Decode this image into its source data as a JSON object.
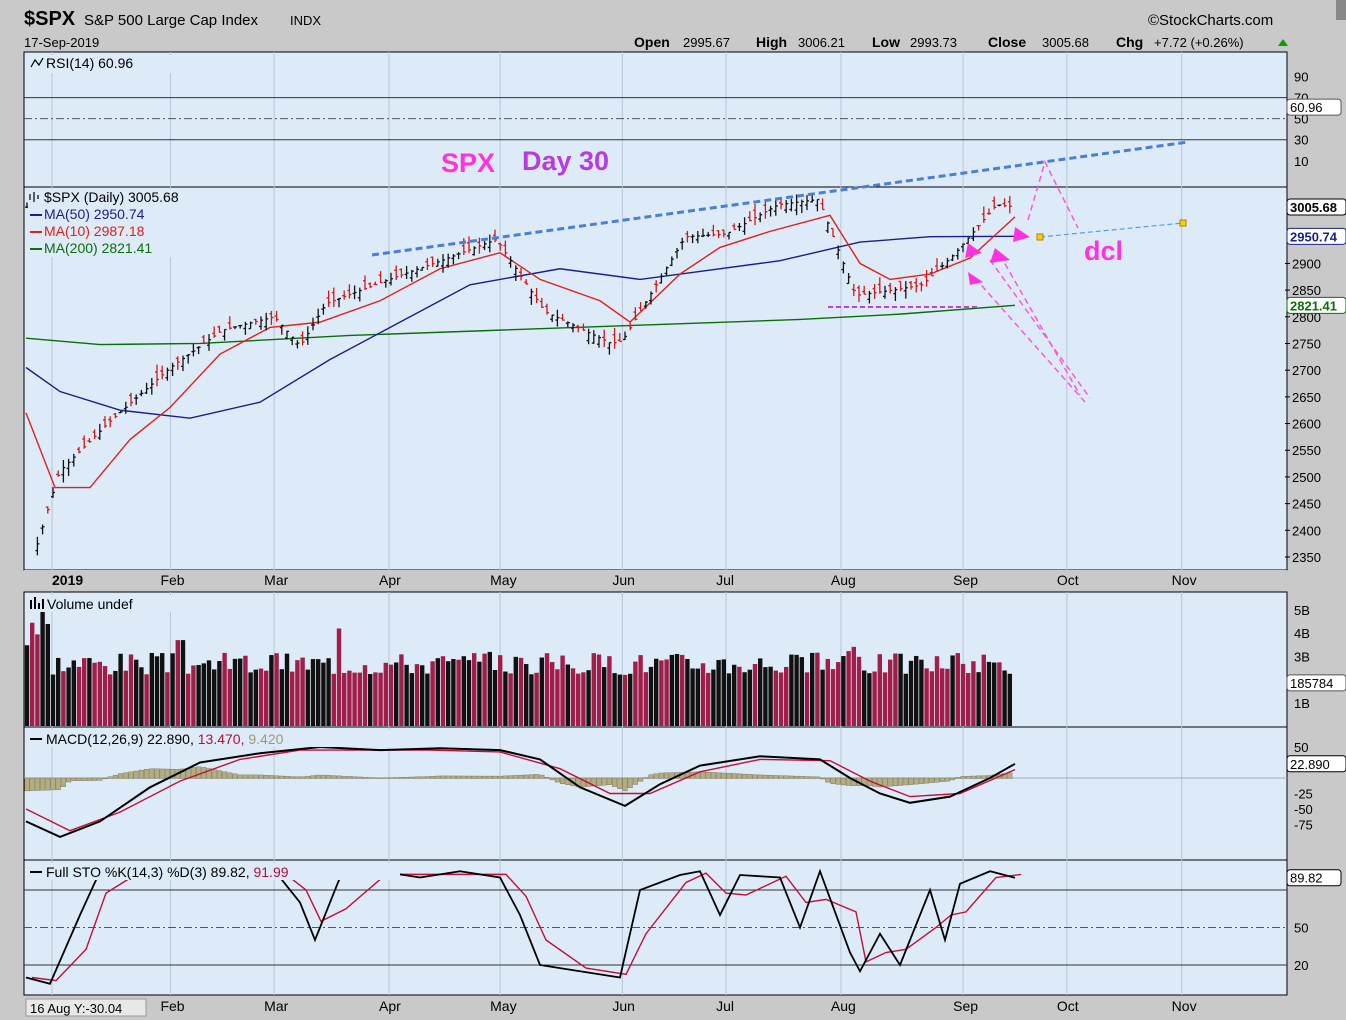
{
  "header": {
    "symbol": "$SPX",
    "name": "S&P 500 Large Cap Index",
    "exchange": "INDX",
    "date": "17-Sep-2019",
    "source": "©StockCharts.com",
    "open_label": "Open",
    "open": "2995.67",
    "high_label": "High",
    "high": "3006.21",
    "low_label": "Low",
    "low": "2993.73",
    "close_label": "Close",
    "close": "3005.68",
    "chg_label": "Chg",
    "chg": "+7.72 (+0.26%)",
    "chg_arrow": "up-triangle-icon"
  },
  "rsi": {
    "label": "RSI(14) 60.96",
    "value_badge": "60.96",
    "ticks": [
      90,
      70,
      50,
      30,
      10
    ],
    "bands": [
      70,
      50,
      30
    ]
  },
  "price": {
    "legend_title": "$SPX (Daily) 3005.68",
    "legend": [
      {
        "label": "MA(50) 2950.74",
        "color": "#1a1f8c"
      },
      {
        "label": "MA(10) 2987.18",
        "color": "#e0201b"
      },
      {
        "label": "MA(200) 2821.41",
        "color": "#0a6e0a"
      }
    ],
    "badges": [
      {
        "text": "3005.68",
        "value": 3005.68,
        "color": "#000000"
      },
      {
        "text": "2950.74",
        "value": 2950.74,
        "color": "#1a1f8c"
      },
      {
        "text": "2821.41",
        "value": 2821.41,
        "color": "#0a6e0a"
      }
    ],
    "ticks": [
      2900,
      2850,
      2800,
      2750,
      2700,
      2650,
      2600,
      2550,
      2500,
      2450,
      2400,
      2350
    ]
  },
  "volume": {
    "label": "Volume undef",
    "ticks": [
      "5B",
      "4B",
      "3B",
      "1B"
    ],
    "badge": "185784"
  },
  "macd": {
    "label_main": "MACD(12,26,9) 22.890, ",
    "label_sig": "13.470, ",
    "label_hist": "9.420",
    "ticks": [
      50,
      -25,
      -50,
      -75
    ],
    "badge": "22.890"
  },
  "sto": {
    "label_main": "Full STO %K(14,3) %D(3) 89.82, ",
    "label_sig": "91.99",
    "ticks": [
      50,
      20
    ],
    "badge": "89.82",
    "footnote": "16 Aug Y:-30.04"
  },
  "months": [
    "2019",
    "Feb",
    "Mar",
    "Apr",
    "May",
    "Jun",
    "Jul",
    "Aug",
    "Sep",
    "Oct",
    "Nov"
  ],
  "annotations": {
    "spx": "SPX",
    "day": "Day 30",
    "dcl": "dcl",
    "color": "#ff33dd",
    "day_color": "#b83ae0"
  },
  "chart_data": {
    "type": "line",
    "title": "$SPX S&P 500 Large Cap Index INDX",
    "x": [
      "2018-12-26",
      "2019-01-02",
      "2019-01-15",
      "2019-02-01",
      "2019-02-15",
      "2019-03-01",
      "2019-03-08",
      "2019-03-15",
      "2019-04-01",
      "2019-04-15",
      "2019-04-30",
      "2019-05-13",
      "2019-05-31",
      "2019-06-03",
      "2019-06-20",
      "2019-07-01",
      "2019-07-15",
      "2019-07-26",
      "2019-08-05",
      "2019-08-15",
      "2019-08-23",
      "2019-09-01",
      "2019-09-12",
      "2019-09-17"
    ],
    "series": [
      {
        "name": "$SPX (Daily)",
        "values": [
          2350,
          2510,
          2600,
          2705,
          2775,
          2800,
          2745,
          2825,
          2870,
          2905,
          2945,
          2810,
          2750,
          2755,
          2950,
          2955,
          3010,
          3020,
          2840,
          2850,
          2860,
          2920,
          3010,
          3005.68
        ]
      }
    ],
    "ma50_end": 2950.74,
    "ma10_end": 2987.18,
    "ma200_end": 2821.41,
    "ylim": [
      2330,
      3060
    ]
  }
}
